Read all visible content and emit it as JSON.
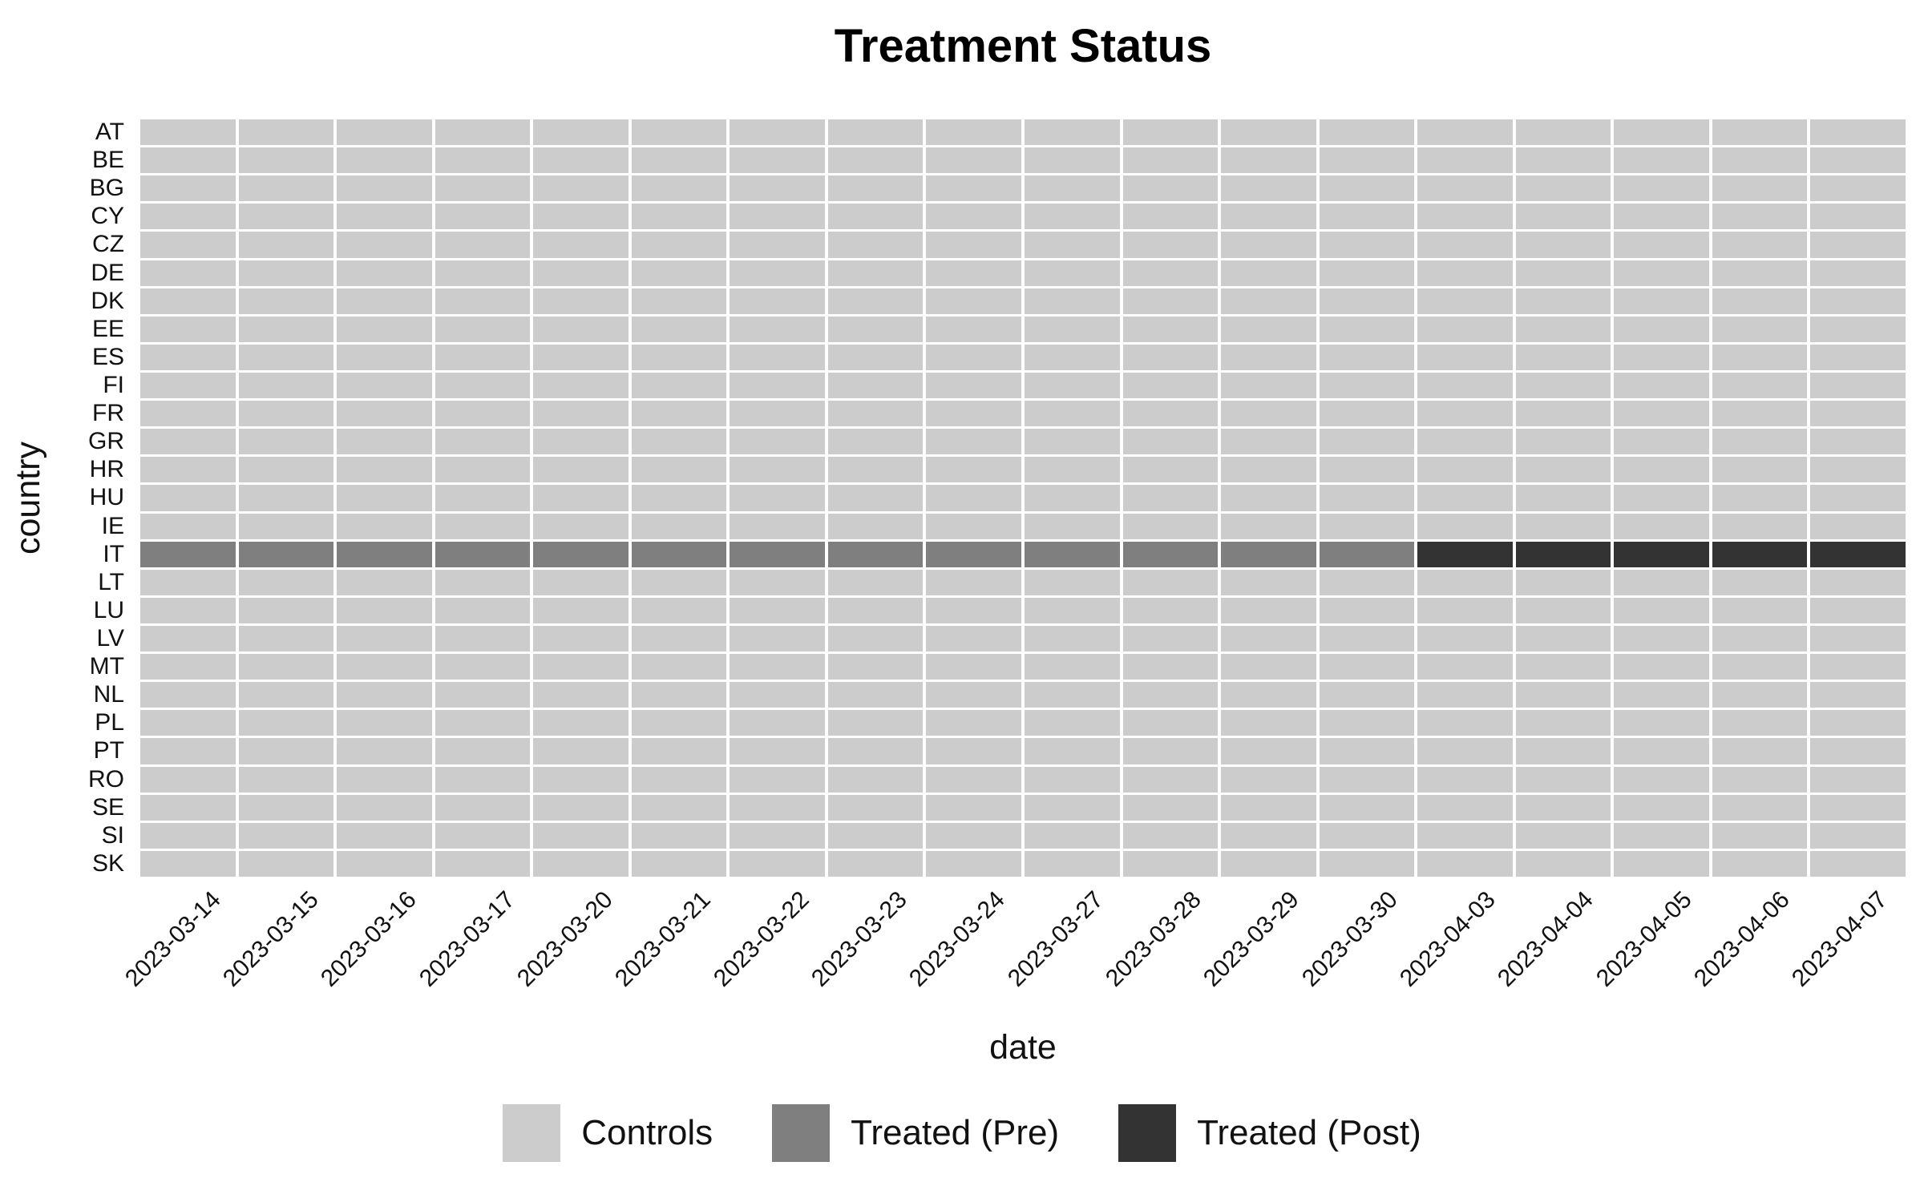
{
  "title": "Treatment Status",
  "x_axis": {
    "title": "date"
  },
  "y_axis": {
    "title": "country"
  },
  "legend": {
    "items": [
      {
        "label": "Controls",
        "status": "control",
        "color": "#cccccc"
      },
      {
        "label": "Treated (Pre)",
        "status": "pre",
        "color": "#7f7f7f"
      },
      {
        "label": "Treated (Post)",
        "status": "post",
        "color": "#333333"
      }
    ]
  },
  "chart_data": {
    "type": "heatmap",
    "title": "Treatment Status",
    "xlabel": "date",
    "ylabel": "country",
    "legend_position": "bottom",
    "grid_color": "#ffffff",
    "x": [
      "2023-03-14",
      "2023-03-15",
      "2023-03-16",
      "2023-03-17",
      "2023-03-20",
      "2023-03-21",
      "2023-03-22",
      "2023-03-23",
      "2023-03-24",
      "2023-03-27",
      "2023-03-28",
      "2023-03-29",
      "2023-03-30",
      "2023-04-03",
      "2023-04-04",
      "2023-04-05",
      "2023-04-06",
      "2023-04-07"
    ],
    "y": [
      "AT",
      "BE",
      "BG",
      "CY",
      "CZ",
      "DE",
      "DK",
      "EE",
      "ES",
      "FI",
      "FR",
      "GR",
      "HR",
      "HU",
      "IE",
      "IT",
      "LT",
      "LU",
      "LV",
      "MT",
      "NL",
      "PL",
      "PT",
      "RO",
      "SE",
      "SI",
      "SK"
    ],
    "status_labels": {
      "control": "Controls",
      "pre": "Treated (Pre)",
      "post": "Treated (Post)"
    },
    "colors": {
      "control": "#cccccc",
      "pre": "#7f7f7f",
      "post": "#333333"
    },
    "default_status": "control",
    "row_overrides": {
      "IT": [
        "pre",
        "pre",
        "pre",
        "pre",
        "pre",
        "pre",
        "pre",
        "pre",
        "pre",
        "pre",
        "pre",
        "pre",
        "pre",
        "post",
        "post",
        "post",
        "post",
        "post"
      ]
    }
  }
}
